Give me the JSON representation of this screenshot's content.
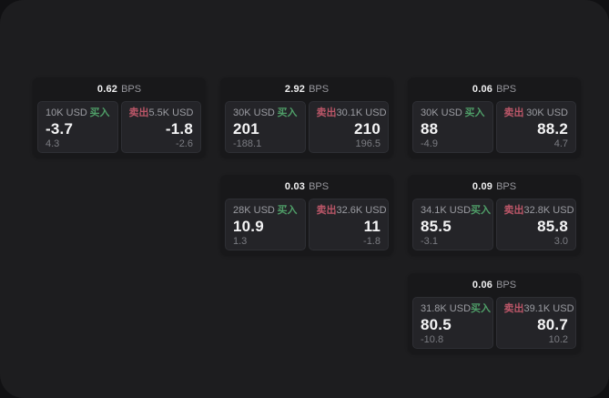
{
  "labels": {
    "bps_unit": "BPS",
    "buy": "买入",
    "sell": "卖出"
  },
  "colors": {
    "buy": "#4f9e68",
    "sell": "#bb5668",
    "window_background": "#1d1d1f",
    "card_background": "#18181a",
    "panel_background": "#242428"
  },
  "cards": [
    {
      "bps": "0.62",
      "grid": {
        "col": 0,
        "row": 0
      },
      "buy": {
        "amount": "10K USD",
        "price": "-3.7",
        "delta": "4.3"
      },
      "sell": {
        "amount": "5.5K USD",
        "price": "-1.8",
        "delta": "-2.6"
      }
    },
    {
      "bps": "2.92",
      "grid": {
        "col": 1,
        "row": 0
      },
      "buy": {
        "amount": "30K USD",
        "price": "201",
        "delta": "-188.1"
      },
      "sell": {
        "amount": "30.1K USD",
        "price": "210",
        "delta": "196.5"
      }
    },
    {
      "bps": "0.06",
      "grid": {
        "col": 2,
        "row": 0
      },
      "buy": {
        "amount": "30K USD",
        "price": "88",
        "delta": "-4.9"
      },
      "sell": {
        "amount": "30K USD",
        "price": "88.2",
        "delta": "4.7"
      }
    },
    {
      "bps": "0.03",
      "grid": {
        "col": 1,
        "row": 1
      },
      "buy": {
        "amount": "28K USD",
        "price": "10.9",
        "delta": "1.3"
      },
      "sell": {
        "amount": "32.6K USD",
        "price": "11",
        "delta": "-1.8"
      }
    },
    {
      "bps": "0.09",
      "grid": {
        "col": 2,
        "row": 1
      },
      "buy": {
        "amount": "34.1K USD",
        "price": "85.5",
        "delta": "-3.1"
      },
      "sell": {
        "amount": "32.8K USD",
        "price": "85.8",
        "delta": "3.0"
      }
    },
    {
      "bps": "0.06",
      "grid": {
        "col": 2,
        "row": 2
      },
      "buy": {
        "amount": "31.8K USD",
        "price": "80.5",
        "delta": "-10.8"
      },
      "sell": {
        "amount": "39.1K USD",
        "price": "80.7",
        "delta": "10.2"
      }
    }
  ]
}
